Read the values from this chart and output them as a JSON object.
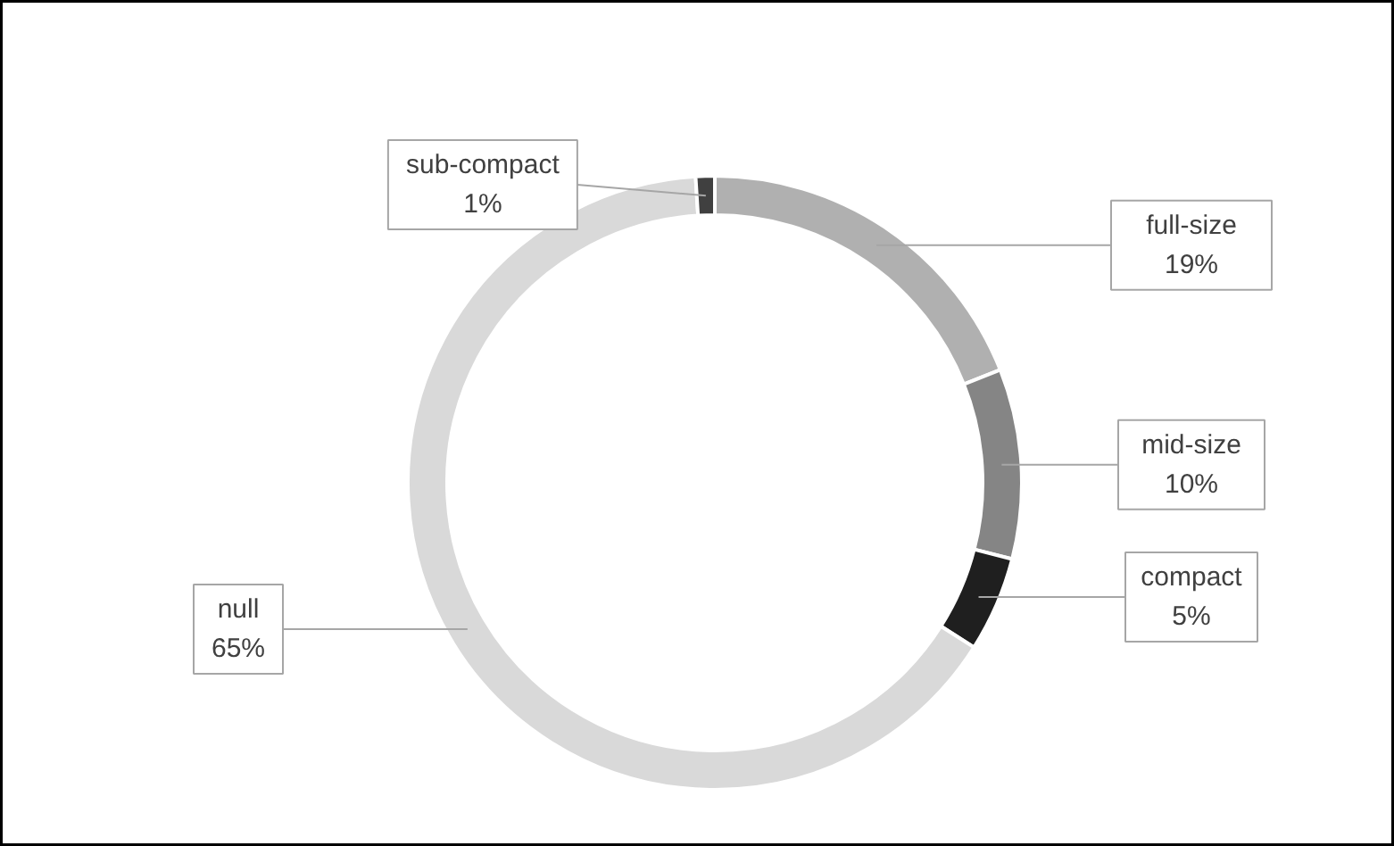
{
  "chart_data": {
    "type": "donut",
    "categories": [
      "full-size",
      "mid-size",
      "compact",
      "null",
      "sub-compact"
    ],
    "values": [
      19,
      10,
      5,
      65,
      1
    ],
    "value_labels": [
      "19%",
      "10%",
      "5%",
      "65%",
      "1%"
    ],
    "colors": [
      "#b0b0b0",
      "#858585",
      "#1f1f1f",
      "#d9d9d9",
      "#404040"
    ]
  }
}
